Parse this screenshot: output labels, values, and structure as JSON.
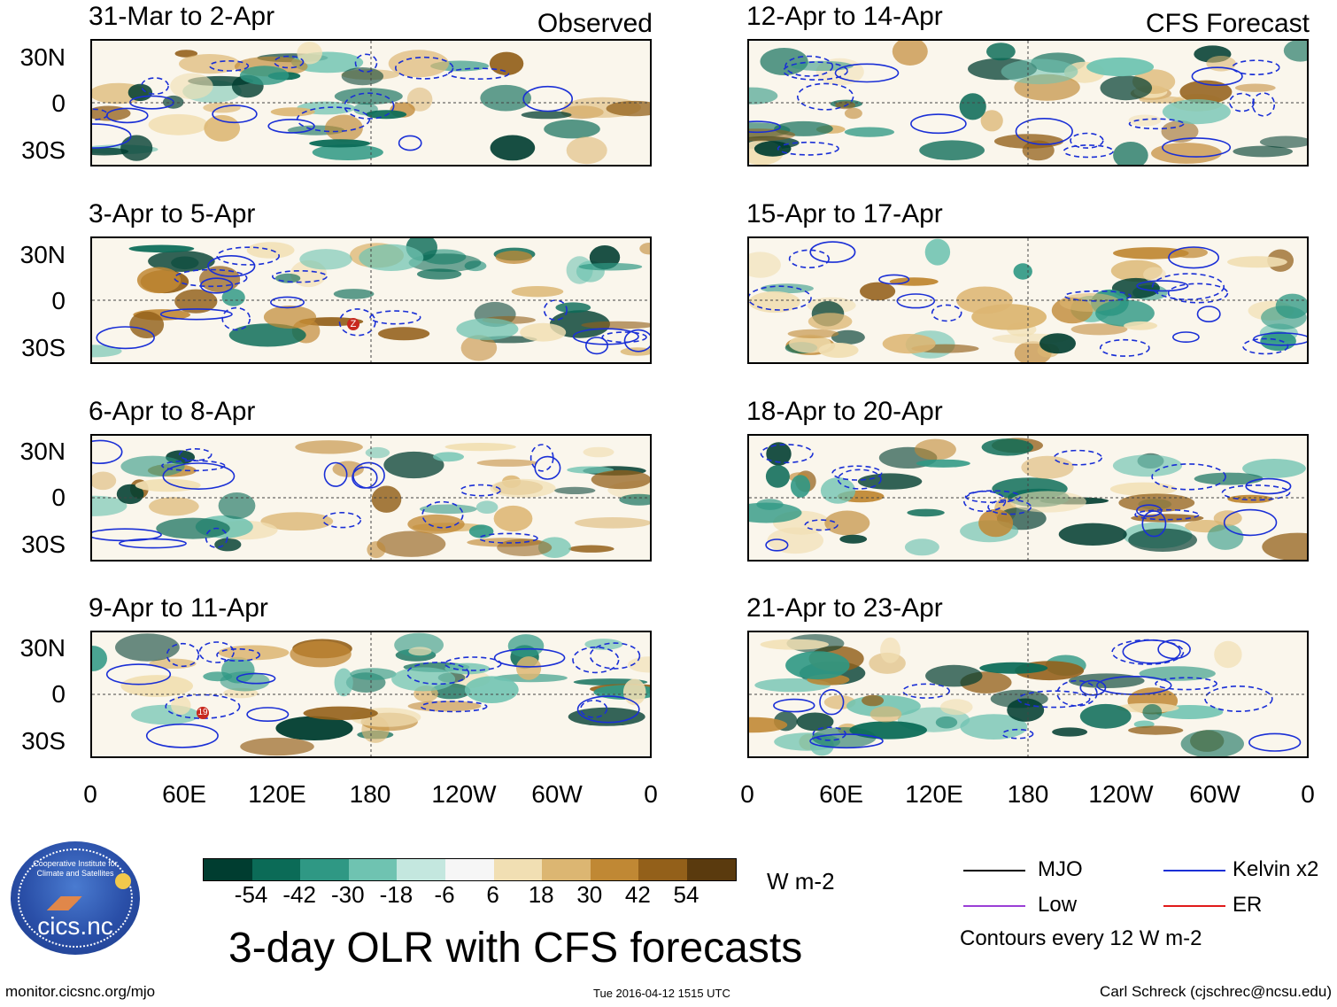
{
  "header": {
    "observed_label": "Observed",
    "forecast_label": "CFS Forecast"
  },
  "panels": [
    {
      "title": "31-Mar to 2-Apr"
    },
    {
      "title": "3-Apr to 5-Apr",
      "storm_marker": "Z"
    },
    {
      "title": "6-Apr to 8-Apr"
    },
    {
      "title": "9-Apr to 11-Apr",
      "storm_marker": "19"
    },
    {
      "title": "12-Apr to 14-Apr"
    },
    {
      "title": "15-Apr to 17-Apr"
    },
    {
      "title": "18-Apr to 20-Apr"
    },
    {
      "title": "21-Apr to 23-Apr"
    }
  ],
  "chart_data": {
    "type": "heatmap",
    "title": "3-day OLR with CFS forecasts",
    "lat_ticks": [
      "30N",
      "0",
      "30S"
    ],
    "lon_ticks": [
      "0",
      "60E",
      "120E",
      "180",
      "120W",
      "60W",
      "0"
    ],
    "colorbar": {
      "unit": "W m-2",
      "labels": [
        "-54",
        "-42",
        "-30",
        "-18",
        "-6",
        "6",
        "18",
        "30",
        "42",
        "54"
      ],
      "colors": [
        "#003d30",
        "#0b6b57",
        "#2f9884",
        "#6fc3b1",
        "#c4e7df",
        "#f6f6f6",
        "#f1dfb3",
        "#dcb672",
        "#c08834",
        "#93601a",
        "#5a3a0e"
      ]
    },
    "legend": [
      {
        "label": "MJO",
        "color": "#000000"
      },
      {
        "label": "Kelvin x2",
        "color": "#1a2fd6"
      },
      {
        "label": "Low",
        "color": "#9a3fd6"
      },
      {
        "label": "ER",
        "color": "#e01a1a"
      }
    ],
    "contour_note": "Contours every 12 W m-2"
  },
  "footer": {
    "website": "monitor.cicsnc.org/mjo",
    "timestamp": "Tue 2016-04-12 1515 UTC",
    "author": "Carl Schreck (cjschrec@ncsu.edu)",
    "logo_text": "cics.nc",
    "logo_ring_text": "Cooperative Institute for Climate and Satellites"
  }
}
